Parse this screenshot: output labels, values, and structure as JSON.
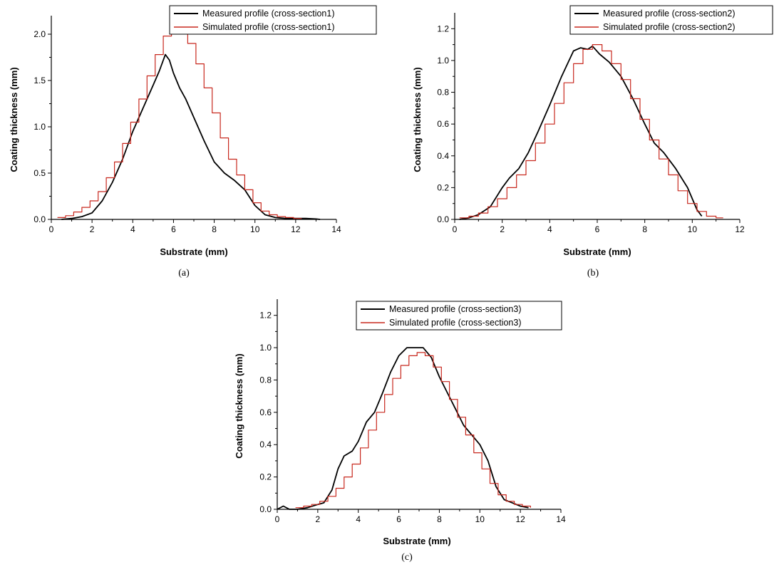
{
  "chart_data": [
    {
      "type": "line",
      "caption": "(a)",
      "xlabel": "Substrate (mm)",
      "ylabel": "Coating thickness (mm)",
      "xlim": [
        0,
        14
      ],
      "ylim": [
        0,
        2.2
      ],
      "xticks": [
        0,
        2,
        4,
        6,
        8,
        10,
        12,
        14
      ],
      "yticks": [
        0.0,
        0.5,
        1.0,
        1.5,
        2.0
      ],
      "ytick_labels": [
        "0.0",
        "0.5",
        "1.0",
        "1.5",
        "2.0"
      ],
      "grid": false,
      "legend_position": "top-right",
      "series": [
        {
          "name": "Measured profile (cross-section1)",
          "color": "#000000",
          "style": "line",
          "x": [
            0.5,
            1,
            1.5,
            2,
            2.5,
            3,
            3.5,
            4,
            4.5,
            5,
            5.3,
            5.6,
            5.8,
            6,
            6.3,
            6.6,
            7,
            7.5,
            8,
            8.5,
            9,
            9.5,
            10,
            10.5,
            11,
            11.5,
            12,
            12.5,
            13,
            13.2
          ],
          "y": [
            0,
            0.01,
            0.03,
            0.07,
            0.2,
            0.4,
            0.65,
            0.95,
            1.2,
            1.45,
            1.6,
            1.78,
            1.72,
            1.58,
            1.42,
            1.3,
            1.1,
            0.85,
            0.62,
            0.5,
            0.42,
            0.32,
            0.15,
            0.05,
            0.02,
            0.01,
            0.01,
            0.01,
            0.005,
            0.0
          ]
        },
        {
          "name": "Simulated profile (cross-section1)",
          "color": "#c8281e",
          "style": "step",
          "x": [
            0.3,
            0.7,
            1.1,
            1.5,
            1.9,
            2.3,
            2.7,
            3.1,
            3.5,
            3.9,
            4.3,
            4.7,
            5.1,
            5.5,
            5.9,
            6.3,
            6.7,
            7.1,
            7.5,
            7.9,
            8.3,
            8.7,
            9.1,
            9.5,
            9.9,
            10.3,
            10.7,
            11.1,
            11.5,
            11.9,
            12.3
          ],
          "y": [
            0.02,
            0.04,
            0.08,
            0.13,
            0.2,
            0.3,
            0.45,
            0.62,
            0.82,
            1.05,
            1.3,
            1.55,
            1.78,
            1.98,
            2.06,
            2.03,
            1.9,
            1.68,
            1.42,
            1.15,
            0.88,
            0.65,
            0.48,
            0.32,
            0.18,
            0.09,
            0.05,
            0.03,
            0.02,
            0.01,
            0.01
          ]
        }
      ]
    },
    {
      "type": "line",
      "caption": "(b)",
      "xlabel": "Substrate (mm)",
      "ylabel": "Coating thickness (mm)",
      "xlim": [
        0,
        12
      ],
      "ylim": [
        0,
        1.3
      ],
      "xticks": [
        0,
        2,
        4,
        6,
        8,
        10,
        12
      ],
      "yticks": [
        0.0,
        0.2,
        0.4,
        0.6,
        0.8,
        1.0,
        1.2
      ],
      "ytick_labels": [
        "0.0",
        "0.2",
        "0.4",
        "0.6",
        "0.8",
        "1.0",
        "1.2"
      ],
      "grid": false,
      "legend_position": "top-right",
      "series": [
        {
          "name": "Measured profile (cross-section2)",
          "color": "#000000",
          "style": "line",
          "x": [
            0.2,
            0.6,
            1.0,
            1.5,
            2.0,
            2.3,
            2.7,
            3.1,
            3.5,
            4.0,
            4.5,
            5.0,
            5.3,
            5.6,
            5.8,
            6.1,
            6.5,
            7.0,
            7.5,
            8.0,
            8.4,
            8.8,
            9.3,
            9.8,
            10.2,
            10.4
          ],
          "y": [
            0.0,
            0.01,
            0.03,
            0.08,
            0.2,
            0.26,
            0.32,
            0.42,
            0.55,
            0.72,
            0.9,
            1.06,
            1.08,
            1.07,
            1.09,
            1.04,
            0.99,
            0.9,
            0.76,
            0.6,
            0.48,
            0.42,
            0.32,
            0.2,
            0.06,
            0.02
          ]
        },
        {
          "name": "Simulated profile (cross-section2)",
          "color": "#c8281e",
          "style": "step",
          "x": [
            0.2,
            0.6,
            1.0,
            1.4,
            1.8,
            2.2,
            2.6,
            3.0,
            3.4,
            3.8,
            4.2,
            4.6,
            5.0,
            5.4,
            5.8,
            6.2,
            6.6,
            7.0,
            7.4,
            7.8,
            8.2,
            8.6,
            9.0,
            9.4,
            9.8,
            10.2,
            10.6,
            11.0,
            11.3
          ],
          "y": [
            0.01,
            0.02,
            0.04,
            0.08,
            0.13,
            0.2,
            0.28,
            0.37,
            0.48,
            0.6,
            0.73,
            0.86,
            0.98,
            1.07,
            1.1,
            1.06,
            0.98,
            0.88,
            0.76,
            0.63,
            0.5,
            0.38,
            0.28,
            0.18,
            0.1,
            0.05,
            0.02,
            0.01,
            0.01
          ]
        }
      ]
    },
    {
      "type": "line",
      "caption": "(c)",
      "xlabel": "Substrate (mm)",
      "ylabel": "Coating thickness (mm)",
      "xlim": [
        0,
        14
      ],
      "ylim": [
        0,
        1.3
      ],
      "xticks": [
        0,
        2,
        4,
        6,
        8,
        10,
        12,
        14
      ],
      "yticks": [
        0.0,
        0.2,
        0.4,
        0.6,
        0.8,
        1.0,
        1.2
      ],
      "ytick_labels": [
        "0.0",
        "0.2",
        "0.4",
        "0.6",
        "0.8",
        "1.0",
        "1.2"
      ],
      "grid": false,
      "legend_position": "top-right",
      "series": [
        {
          "name": "Measured profile (cross-section3)",
          "color": "#000000",
          "style": "line",
          "x": [
            0.0,
            0.3,
            0.6,
            1.0,
            1.5,
            2.0,
            2.3,
            2.7,
            3.0,
            3.3,
            3.7,
            4.0,
            4.4,
            4.8,
            5.2,
            5.6,
            6.0,
            6.4,
            6.8,
            7.2,
            7.6,
            8.0,
            8.4,
            8.8,
            9.2,
            9.6,
            10.0,
            10.4,
            10.8,
            11.2,
            11.6,
            12.0,
            12.4
          ],
          "y": [
            0.0,
            0.02,
            0.0,
            0.0,
            0.01,
            0.03,
            0.04,
            0.12,
            0.25,
            0.33,
            0.36,
            0.42,
            0.54,
            0.6,
            0.72,
            0.85,
            0.95,
            1.0,
            1.0,
            1.0,
            0.94,
            0.82,
            0.72,
            0.62,
            0.52,
            0.46,
            0.4,
            0.3,
            0.14,
            0.06,
            0.04,
            0.02,
            0.01
          ]
        },
        {
          "name": "Simulated profile (cross-section3)",
          "color": "#c8281e",
          "style": "step",
          "x": [
            0.9,
            1.3,
            1.7,
            2.1,
            2.5,
            2.9,
            3.3,
            3.7,
            4.1,
            4.5,
            4.9,
            5.3,
            5.7,
            6.1,
            6.5,
            6.9,
            7.3,
            7.7,
            8.1,
            8.5,
            8.9,
            9.3,
            9.7,
            10.1,
            10.5,
            10.9,
            11.3,
            11.7,
            12.1,
            12.5
          ],
          "y": [
            0.01,
            0.02,
            0.03,
            0.05,
            0.08,
            0.13,
            0.2,
            0.28,
            0.38,
            0.49,
            0.6,
            0.71,
            0.81,
            0.89,
            0.95,
            0.97,
            0.95,
            0.88,
            0.79,
            0.68,
            0.57,
            0.46,
            0.35,
            0.25,
            0.16,
            0.09,
            0.05,
            0.03,
            0.02,
            0.01
          ]
        }
      ]
    }
  ]
}
